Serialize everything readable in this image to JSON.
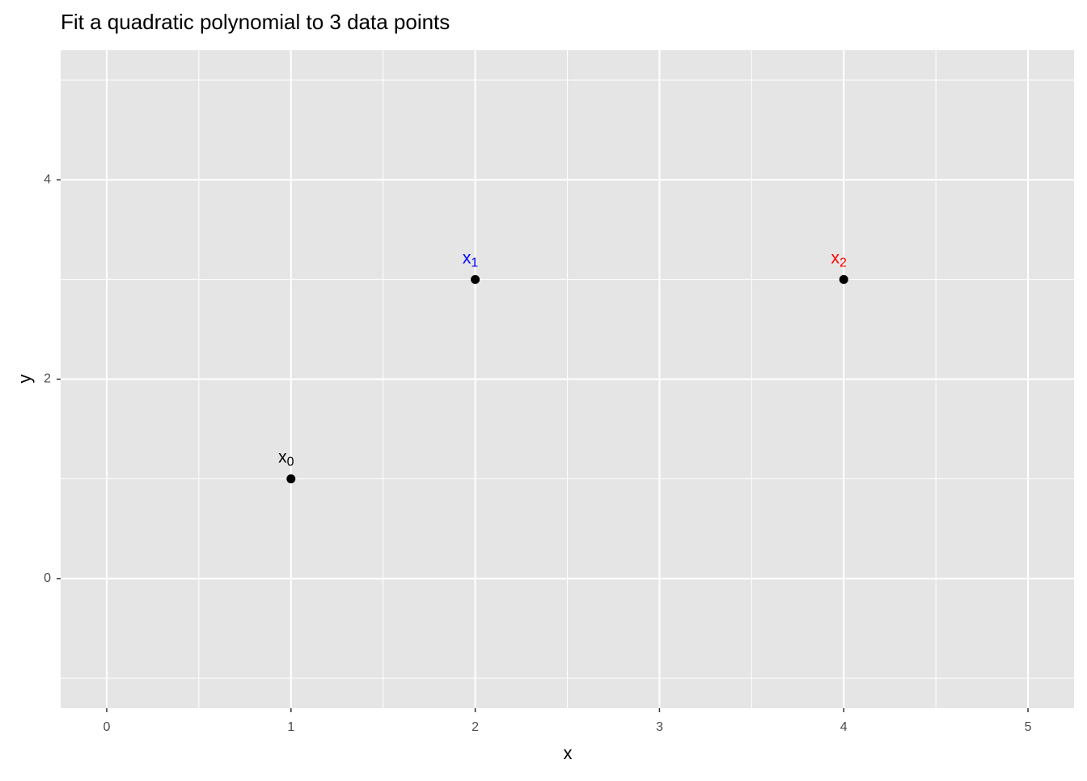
{
  "chart_data": {
    "type": "scatter",
    "title": "Fit a quadratic polynomial to 3 data points",
    "x_label": "x",
    "y_label": "y",
    "x": [
      1,
      2,
      4
    ],
    "values": [
      1,
      3,
      3
    ],
    "color": "#000000",
    "point_labels": [
      {
        "text": "x",
        "sub": "0",
        "color": "#000000"
      },
      {
        "text": "x",
        "sub": "1",
        "color": "#0000ff"
      },
      {
        "text": "x",
        "sub": "2",
        "color": "#ff0000"
      }
    ],
    "xlim": [
      -0.25,
      5.25
    ],
    "xticks": [
      0,
      1,
      2,
      3,
      4,
      5
    ],
    "ylim": [
      -1.3,
      5.3
    ],
    "yticks": [
      0,
      2,
      4
    ],
    "grid": true,
    "panel_color": "#e5e5e5"
  }
}
